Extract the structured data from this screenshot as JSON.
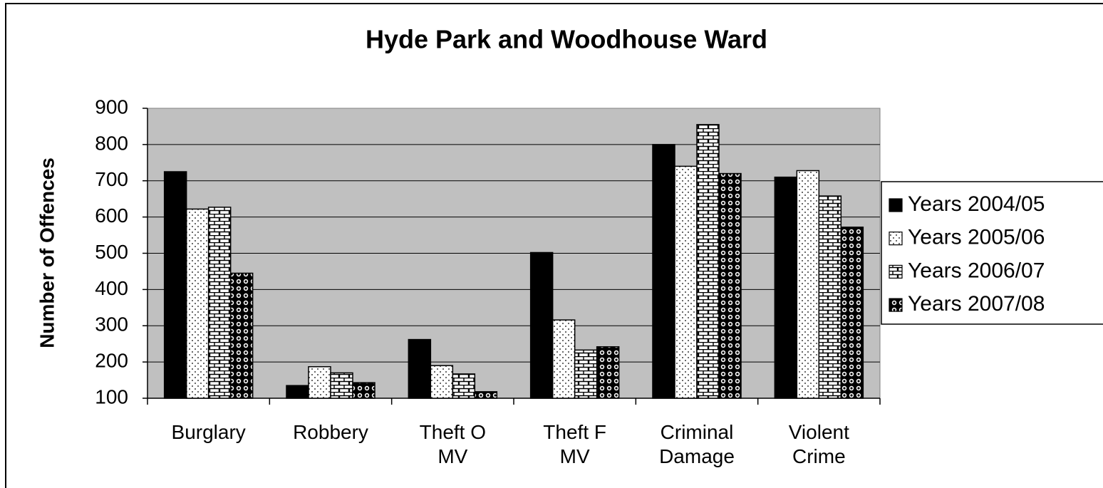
{
  "chart_data": {
    "type": "bar",
    "title": "Hyde Park and Woodhouse Ward",
    "y_label": "Number of Offences",
    "categories": [
      "Burglary",
      "Robbery",
      "Theft O MV",
      "Theft F MV",
      "Criminal Damage",
      "Violent Crime"
    ],
    "series": [
      {
        "name": "Years 2004/05",
        "values": [
          725,
          135,
          262,
          502,
          800,
          710
        ]
      },
      {
        "name": "Years 2005/06",
        "values": [
          622,
          187,
          190,
          316,
          740,
          728
        ]
      },
      {
        "name": "Years 2006/07",
        "values": [
          627,
          170,
          167,
          233,
          855,
          658
        ]
      },
      {
        "name": "Years 2007/08",
        "values": [
          445,
          143,
          118,
          242,
          720,
          572
        ]
      }
    ],
    "ylim": [
      100,
      900
    ],
    "yticks": [
      100,
      200,
      300,
      400,
      500,
      600,
      700,
      800,
      900
    ],
    "grid": true,
    "legend": "right"
  }
}
